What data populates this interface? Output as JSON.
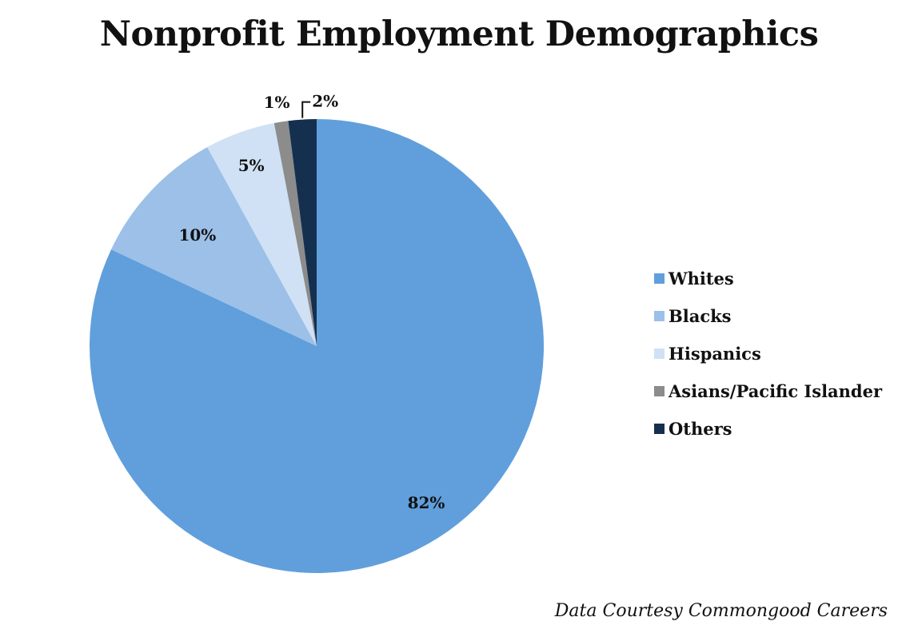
{
  "chart_data": {
    "type": "pie",
    "title": "Nonprofit Employment Demographics",
    "series": [
      {
        "values": [
          {
            "label": "Whites",
            "value": 82,
            "display": "82%",
            "color": "#609fdc"
          },
          {
            "label": "Blacks",
            "value": 10,
            "display": "10%",
            "color": "#9cc0e8"
          },
          {
            "label": "Hispanics",
            "value": 5,
            "display": "5%",
            "color": "#d0e1f5"
          },
          {
            "label": "Asians/Pacific Islander",
            "value": 1,
            "display": "1%",
            "color": "#8c8c8c"
          },
          {
            "label": "Others",
            "value": 2,
            "display": "2%",
            "color": "#15304f"
          }
        ]
      }
    ],
    "legend_position": "right",
    "start_angle": "12 o'clock",
    "direction": "clockwise"
  },
  "source": "Data Courtesy Commongood Careers"
}
